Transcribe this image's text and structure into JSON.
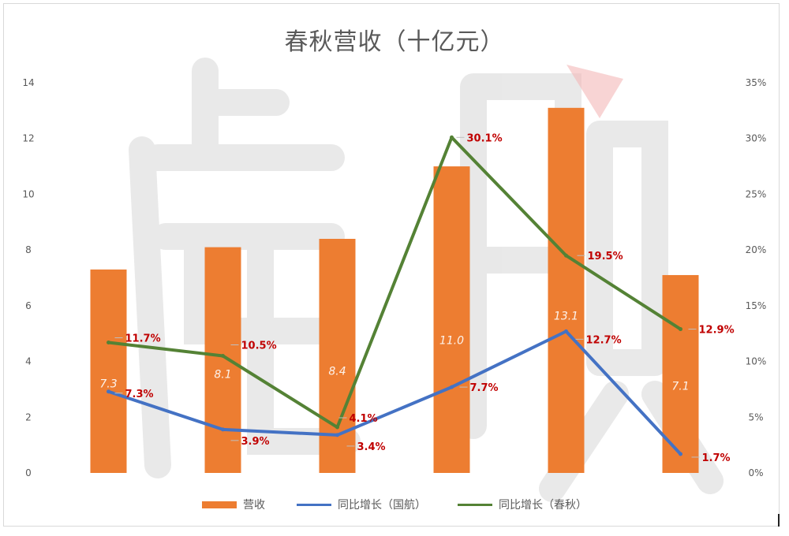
{
  "chart_data": {
    "type": "bar",
    "title": "春秋营收（十亿元）",
    "categories": [
      "",
      "",
      "",
      "",
      "",
      ""
    ],
    "series": [
      {
        "name": "营收",
        "type": "bar",
        "axis": "left",
        "color": "#ED7D31",
        "values": [
          7.3,
          8.1,
          8.4,
          11.0,
          13.1,
          7.1
        ],
        "labels": [
          "7.3",
          "8.1",
          "8.4",
          "11.0",
          "13.1",
          "7.1"
        ]
      },
      {
        "name": "同比增长（国航）",
        "type": "line",
        "axis": "right",
        "color": "#4472C4",
        "values": [
          7.3,
          3.9,
          3.4,
          7.7,
          12.7,
          1.7
        ],
        "labels": [
          "7.3%",
          "3.9%",
          "3.4%",
          "7.7%",
          "12.7%",
          "1.7%"
        ]
      },
      {
        "name": "同比增长（春秋）",
        "type": "line",
        "axis": "right",
        "color": "#548235",
        "values": [
          11.7,
          10.5,
          4.1,
          30.1,
          19.5,
          12.9
        ],
        "labels": [
          "11.7%",
          "10.5%",
          "4.1%",
          "30.1%",
          "19.5%",
          "12.9%"
        ]
      }
    ],
    "y_left": {
      "min": 0,
      "max": 14,
      "ticks": [
        "0",
        "2",
        "4",
        "6",
        "8",
        "10",
        "12",
        "14"
      ]
    },
    "y_right": {
      "min": 0,
      "max": 35,
      "ticks": [
        "0%",
        "5%",
        "10%",
        "15%",
        "20%",
        "25%",
        "30%",
        "35%"
      ]
    },
    "legend_position": "bottom",
    "grid": false,
    "data_label_color": "#C00000"
  },
  "legend": {
    "items": [
      {
        "label": "营收",
        "kind": "bar",
        "color": "#ED7D31"
      },
      {
        "label": "同比增长（国航）",
        "kind": "line",
        "color": "#4472C4"
      },
      {
        "label": "同比增长（春秋）",
        "kind": "line",
        "color": "#548235"
      }
    ]
  }
}
